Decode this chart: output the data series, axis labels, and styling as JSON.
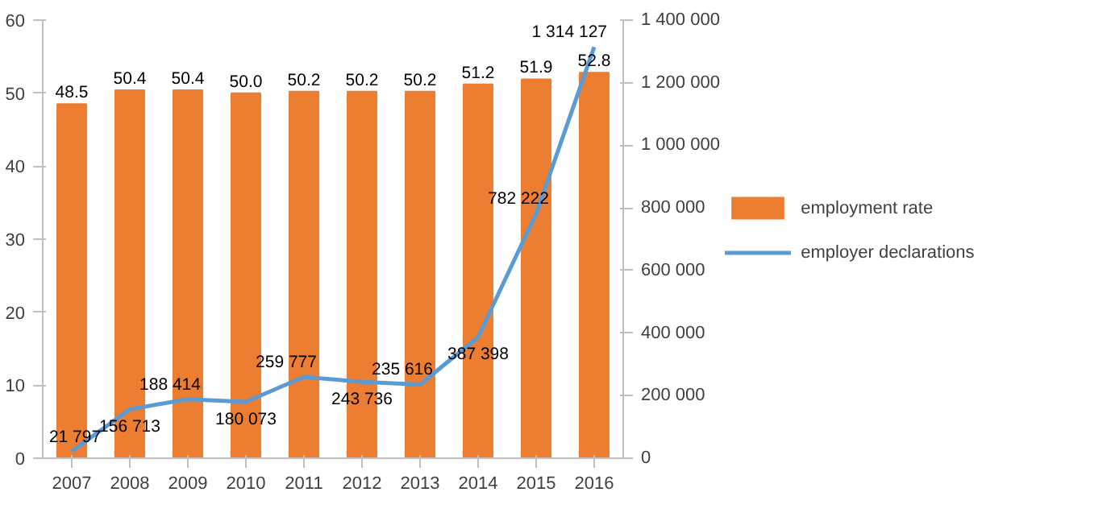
{
  "chart_data": {
    "type": "bar",
    "categories": [
      "2007",
      "2008",
      "2009",
      "2010",
      "2011",
      "2012",
      "2013",
      "2014",
      "2015",
      "2016"
    ],
    "series": [
      {
        "name": "employment rate",
        "color": "#ed7d31",
        "values": [
          48.5,
          50.4,
          50.4,
          50.0,
          50.2,
          50.2,
          50.2,
          51.2,
          51.9,
          52.8
        ],
        "value_labels": [
          "48.5",
          "50.4",
          "50.4",
          "50.0",
          "50.2",
          "50.2",
          "50.2",
          "51.2",
          "51.9",
          "52.8"
        ]
      },
      {
        "name": "employer declarations",
        "type": "line",
        "axis": "y2",
        "color": "#5b9bd5",
        "values": [
          21797,
          156713,
          188414,
          180073,
          259777,
          243736,
          235616,
          387398,
          782222,
          1314127
        ],
        "value_labels": [
          "21 797",
          "156 713",
          "188 414",
          "180 073",
          "259 777",
          "243 736",
          "235 616",
          "387 398",
          "782 222",
          "1 314 127"
        ]
      }
    ],
    "ylim": [
      0,
      60
    ],
    "yticks": [
      0,
      10,
      20,
      30,
      40,
      50,
      60
    ],
    "y2lim": [
      0,
      1400000
    ],
    "y2ticks": [
      {
        "value": 0,
        "label": "0"
      },
      {
        "value": 200000,
        "label": "200 000"
      },
      {
        "value": 400000,
        "label": "400 000"
      },
      {
        "value": 600000,
        "label": "600 000"
      },
      {
        "value": 800000,
        "label": "800 000"
      },
      {
        "value": 1000000,
        "label": "1 000 000"
      },
      {
        "value": 1200000,
        "label": "1 200 000"
      },
      {
        "value": 1400000,
        "label": "1 400 000"
      }
    ],
    "legend": "right",
    "grid": false,
    "marker": "none",
    "line_style": "solid"
  }
}
